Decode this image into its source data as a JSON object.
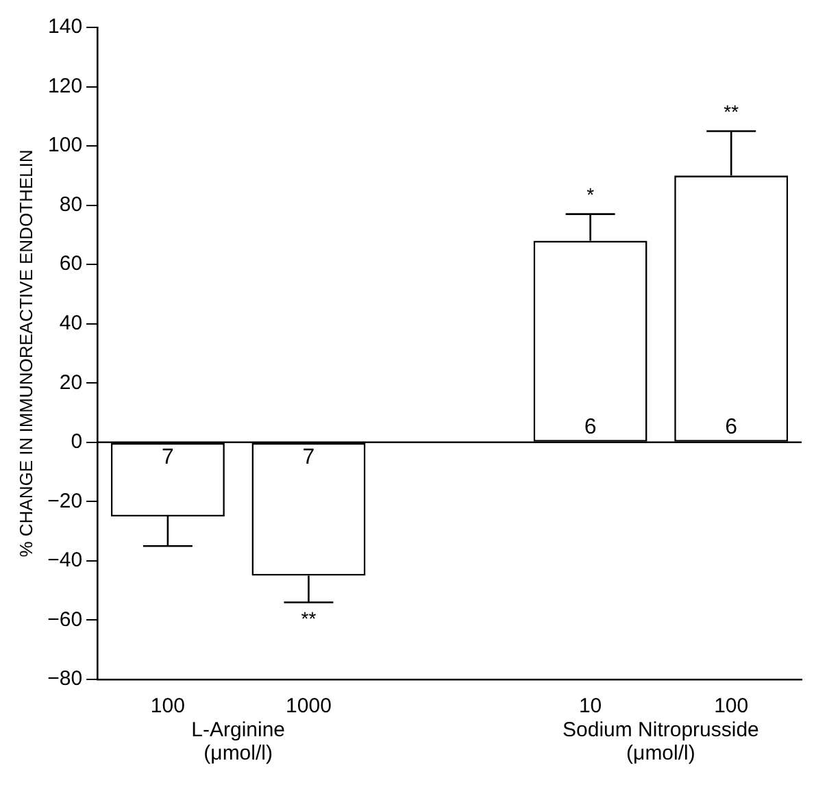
{
  "chart_data": {
    "type": "bar",
    "ylabel": "% CHANGE IN IMMUNOREACTIVE ENDOTHELIN",
    "categories": [
      "100",
      "1000",
      null,
      "10",
      "100"
    ],
    "values": [
      -25,
      -45,
      null,
      68,
      90
    ],
    "errors": [
      [
        -35,
        -25
      ],
      [
        -54,
        -45
      ],
      null,
      [
        68,
        77
      ],
      [
        90,
        105
      ]
    ],
    "color": "#ffffff",
    "ylim": [
      -80,
      140
    ],
    "yticks": [
      -80,
      -60,
      -40,
      -20,
      0,
      20,
      40,
      60,
      80,
      100,
      120,
      140
    ],
    "grid": false,
    "legend": false,
    "ref_lines": [
      {
        "axis": "y",
        "value": 0,
        "color": "#000000"
      }
    ],
    "value_labels": [
      null,
      "**",
      null,
      "*",
      "**"
    ],
    "annotations": [
      "7",
      "7",
      "6",
      "6",
      "L-Arginine\n(μmol/l)",
      "Sodium Nitroprusside\n(μmol/l)"
    ]
  }
}
